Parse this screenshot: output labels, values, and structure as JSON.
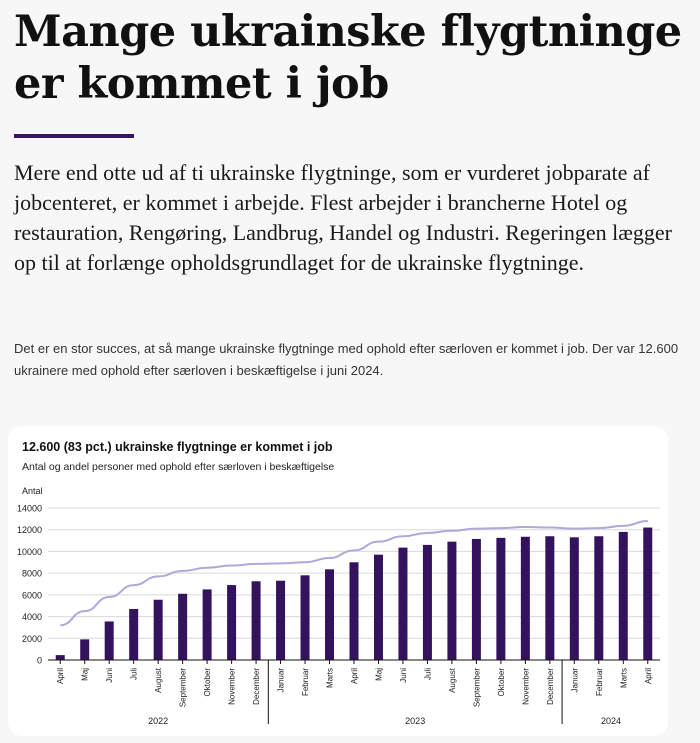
{
  "article": {
    "headline": "Mange ukrainske flygtninge er kommet i job",
    "lead": "Mere end otte ud af ti ukrainske flygtninge, som er vurderet jobparate af jobcenteret, er kommet i arbejde. Flest arbejder i brancherne Hotel og restauration, Rengøring, Landbrug, Handel og Industri. Regeringen lægger op til at forlænge opholdsgrundlaget for de ukrainske flygtninge.",
    "body": "Det er en stor succes, at så mange ukrainske flygtninge med ophold efter særloven er kommet i job. Der var 12.600 ukrainere med ophold efter særloven i beskæftigelse i juni 2024."
  },
  "colors": {
    "bar": "#33125e",
    "line": "#b3a6dc",
    "accent_rule": "#3a1564"
  },
  "chart_data": {
    "type": "bar",
    "title": "12.600 (83 pct.) ukrainske flygtninge er kommet i job",
    "subtitle": "Antal og andel personer med ophold efter særloven i beskæftigelse",
    "ylabel": "Antal",
    "ylim": [
      0,
      14000
    ],
    "yticks": [
      0,
      2000,
      4000,
      6000,
      8000,
      10000,
      12000,
      14000
    ],
    "grid": true,
    "categories": [
      "April",
      "Maj",
      "Juni",
      "Juli",
      "August",
      "September",
      "Oktober",
      "November",
      "December",
      "Januar",
      "Februar",
      "Marts",
      "April",
      "Maj",
      "Juni",
      "Juli",
      "August",
      "September",
      "Oktober",
      "November",
      "December",
      "Januar",
      "Februar",
      "Marts",
      "April"
    ],
    "year_groups": [
      {
        "label": "2022",
        "start": 0,
        "end": 8
      },
      {
        "label": "2023",
        "start": 9,
        "end": 20
      },
      {
        "label": "2024",
        "start": 21,
        "end": 24
      }
    ],
    "series": [
      {
        "type": "bar",
        "values": [
          450,
          1900,
          3550,
          4700,
          5550,
          6100,
          6500,
          6900,
          7250,
          7300,
          7800,
          8350,
          9000,
          9700,
          10350,
          10600,
          10900,
          11150,
          11250,
          11350,
          11400,
          11300,
          11400,
          11800,
          12200
        ]
      },
      {
        "type": "line",
        "values": [
          3200,
          4500,
          5800,
          6900,
          7700,
          8200,
          8500,
          8700,
          8850,
          8900,
          9000,
          9400,
          10100,
          10900,
          11400,
          11700,
          11900,
          12100,
          12150,
          12250,
          12200,
          12100,
          12150,
          12350,
          12800
        ]
      }
    ]
  }
}
